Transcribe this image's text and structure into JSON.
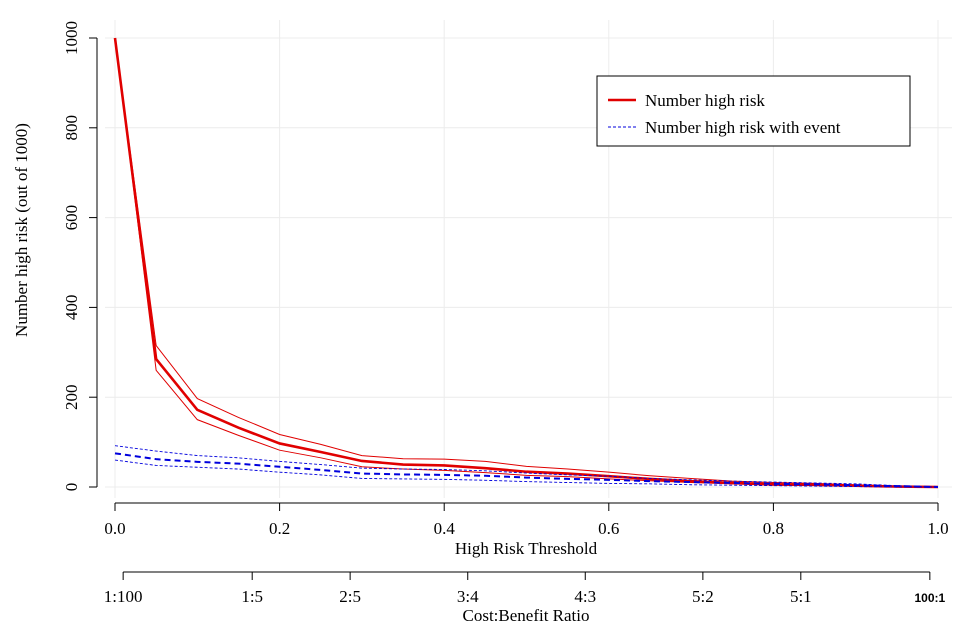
{
  "chart_data": {
    "type": "line",
    "xlabel": "High Risk Threshold",
    "ylabel": "Number high risk (out of 1000)",
    "xlim": [
      0,
      1
    ],
    "ylim": [
      0,
      1000
    ],
    "x_ticks": [
      0,
      0.2,
      0.4,
      0.6,
      0.8,
      1
    ],
    "x_tick_labels": [
      "0.0",
      "0.2",
      "0.4",
      "0.6",
      "0.8",
      "1.0"
    ],
    "y_ticks": [
      0,
      200,
      400,
      600,
      800,
      1000
    ],
    "y_tick_labels": [
      "0",
      "200",
      "400",
      "600",
      "800",
      "1000"
    ],
    "grid": true,
    "legend_position": "top-right",
    "legend": [
      {
        "label": "Number high risk",
        "color": "#e00000",
        "style": "solid"
      },
      {
        "label": "Number high risk with event",
        "color": "#0000dd",
        "style": "dashed"
      }
    ],
    "x": [
      0,
      0.05,
      0.1,
      0.15,
      0.2,
      0.25,
      0.3,
      0.35,
      0.4,
      0.45,
      0.5,
      0.55,
      0.6,
      0.65,
      0.7,
      0.75,
      0.8,
      0.85,
      0.9,
      0.95,
      1.0
    ],
    "series": [
      {
        "name": "Number high risk",
        "color": "#e00000",
        "style": "solid",
        "values": [
          1000,
          285,
          172,
          132,
          97,
          78,
          58,
          50,
          48,
          42,
          34,
          30,
          24,
          18,
          13,
          9,
          6,
          5,
          3,
          1,
          0
        ],
        "lower": [
          1000,
          260,
          150,
          115,
          82,
          65,
          45,
          40,
          37,
          32,
          26,
          23,
          18,
          14,
          10,
          7,
          4,
          3,
          2,
          0,
          0
        ],
        "upper": [
          1000,
          315,
          197,
          155,
          117,
          95,
          70,
          63,
          62,
          57,
          46,
          40,
          33,
          25,
          19,
          13,
          10,
          8,
          5,
          2,
          0
        ]
      },
      {
        "name": "Number high risk with event",
        "color": "#0000dd",
        "style": "dashed",
        "values": [
          75,
          62,
          56,
          52,
          45,
          38,
          30,
          28,
          27,
          25,
          21,
          18,
          16,
          13,
          11,
          9,
          7,
          6,
          4,
          2,
          0
        ],
        "lower": [
          60,
          48,
          44,
          40,
          33,
          27,
          19,
          18,
          17,
          15,
          12,
          10,
          8,
          7,
          5,
          4,
          3,
          2,
          1,
          0,
          0
        ],
        "upper": [
          92,
          80,
          70,
          65,
          57,
          50,
          42,
          40,
          39,
          36,
          31,
          27,
          24,
          19,
          16,
          13,
          11,
          9,
          7,
          3,
          0
        ]
      }
    ],
    "cost_benefit_axis": {
      "label": "Cost:Benefit Ratio",
      "ticks": [
        {
          "threshold": 0.0099,
          "label": "1:100"
        },
        {
          "threshold": 0.1667,
          "label": "1:5"
        },
        {
          "threshold": 0.2857,
          "label": "2:5"
        },
        {
          "threshold": 0.4286,
          "label": "3:4"
        },
        {
          "threshold": 0.5714,
          "label": "4:3"
        },
        {
          "threshold": 0.7143,
          "label": "5:2"
        },
        {
          "threshold": 0.8333,
          "label": "5:1"
        },
        {
          "threshold": 0.9901,
          "label": "100:1"
        }
      ]
    }
  }
}
